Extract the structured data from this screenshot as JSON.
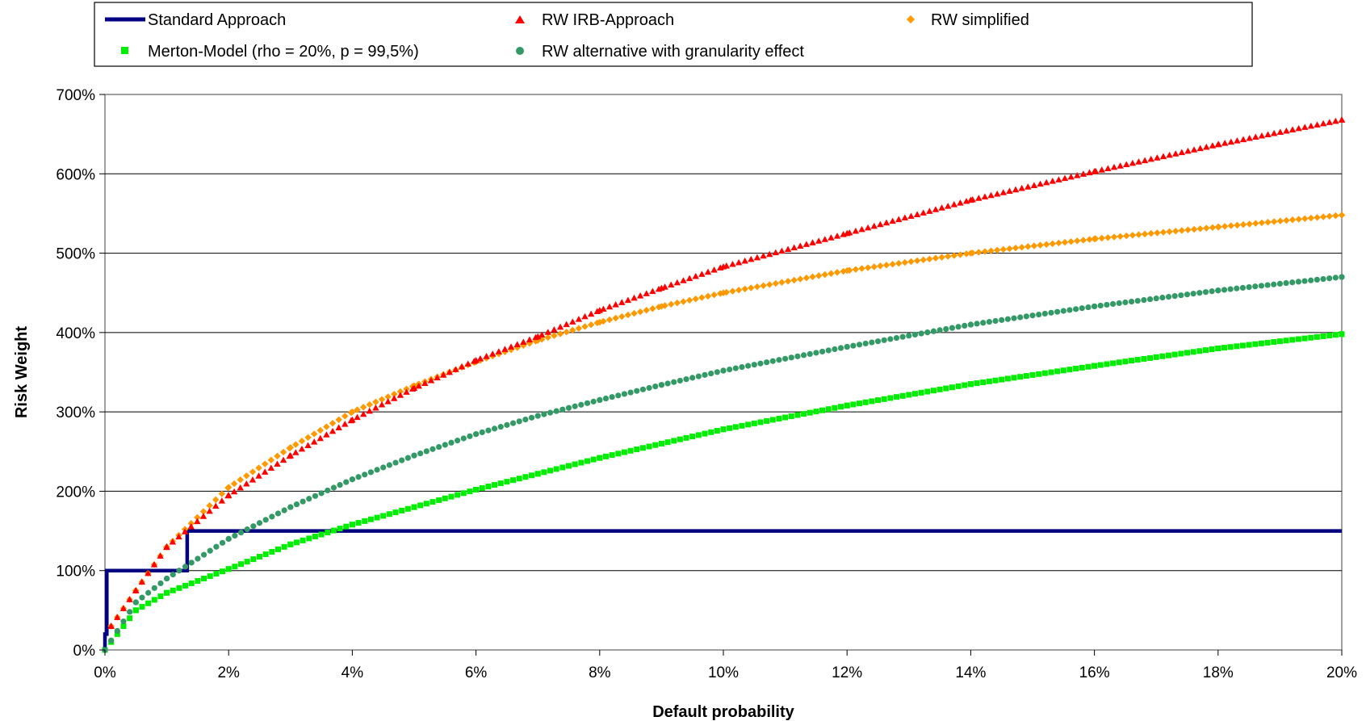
{
  "chart_data": {
    "type": "scatter",
    "xlabel": "Default probability",
    "ylabel": "Risk Weight",
    "xlim": [
      0,
      0.2
    ],
    "ylim": [
      0,
      7.0
    ],
    "x_ticks": [
      0,
      0.02,
      0.04,
      0.06,
      0.08,
      0.1,
      0.12,
      0.14,
      0.16,
      0.18,
      0.2
    ],
    "x_tick_labels": [
      "0%",
      "2%",
      "4%",
      "6%",
      "8%",
      "10%",
      "12%",
      "14%",
      "16%",
      "18%",
      "20%"
    ],
    "y_ticks": [
      0,
      1,
      2,
      3,
      4,
      5,
      6,
      7
    ],
    "y_tick_labels": [
      "0%",
      "100%",
      "200%",
      "300%",
      "400%",
      "500%",
      "600%",
      "700%"
    ],
    "grid": "horizontal",
    "legend_position": "top",
    "series": [
      {
        "name": "Standard Approach",
        "style": "line",
        "color": "#000080",
        "x": [
          0,
          0,
          0.0003,
          0.0003,
          0.0013,
          0.0013,
          0.0133,
          0.0133,
          0.2
        ],
        "y": [
          0,
          0.2,
          0.2,
          1.0,
          1.0,
          1.0,
          1.0,
          1.5,
          1.5
        ]
      },
      {
        "name": "RW IRB-Approach",
        "style": "marker",
        "marker": "triangle",
        "color": "#ff0000",
        "x": [
          0.001,
          0.005,
          0.01,
          0.02,
          0.03,
          0.04,
          0.05,
          0.06,
          0.07,
          0.08,
          0.09,
          0.1,
          0.12,
          0.14,
          0.16,
          0.18,
          0.2
        ],
        "y": [
          0.3,
          0.75,
          1.3,
          1.95,
          2.45,
          2.9,
          3.3,
          3.65,
          3.95,
          4.28,
          4.56,
          4.83,
          5.25,
          5.67,
          6.03,
          6.37,
          6.68
        ]
      },
      {
        "name": "RW simplified",
        "style": "marker",
        "marker": "diamond",
        "color": "#ff9900",
        "x": [
          0.001,
          0.005,
          0.01,
          0.02,
          0.03,
          0.04,
          0.05,
          0.06,
          0.07,
          0.08,
          0.09,
          0.1,
          0.12,
          0.14,
          0.16,
          0.18,
          0.2
        ],
        "y": [
          0.3,
          0.75,
          1.3,
          2.05,
          2.55,
          3.0,
          3.33,
          3.63,
          3.9,
          4.13,
          4.33,
          4.5,
          4.78,
          5.0,
          5.18,
          5.33,
          5.48
        ]
      },
      {
        "name": "Merton-Model (rho = 20%, p = 99,5%)",
        "style": "marker",
        "marker": "square",
        "color": "#00ee00",
        "x": [
          0,
          0.005,
          0.01,
          0.02,
          0.03,
          0.04,
          0.05,
          0.06,
          0.07,
          0.08,
          0.09,
          0.1,
          0.12,
          0.14,
          0.16,
          0.18,
          0.2
        ],
        "y": [
          0,
          0.5,
          0.72,
          1.02,
          1.33,
          1.58,
          1.8,
          2.02,
          2.22,
          2.42,
          2.6,
          2.78,
          3.08,
          3.35,
          3.58,
          3.8,
          3.98
        ]
      },
      {
        "name": "RW alternative with granularity effect",
        "style": "marker",
        "marker": "circle",
        "color": "#339966",
        "x": [
          0,
          0.005,
          0.01,
          0.02,
          0.03,
          0.04,
          0.05,
          0.06,
          0.07,
          0.08,
          0.09,
          0.1,
          0.12,
          0.14,
          0.16,
          0.18,
          0.2
        ],
        "y": [
          0,
          0.6,
          0.9,
          1.4,
          1.8,
          2.15,
          2.45,
          2.72,
          2.95,
          3.15,
          3.34,
          3.52,
          3.82,
          4.1,
          4.33,
          4.53,
          4.7
        ]
      }
    ]
  }
}
